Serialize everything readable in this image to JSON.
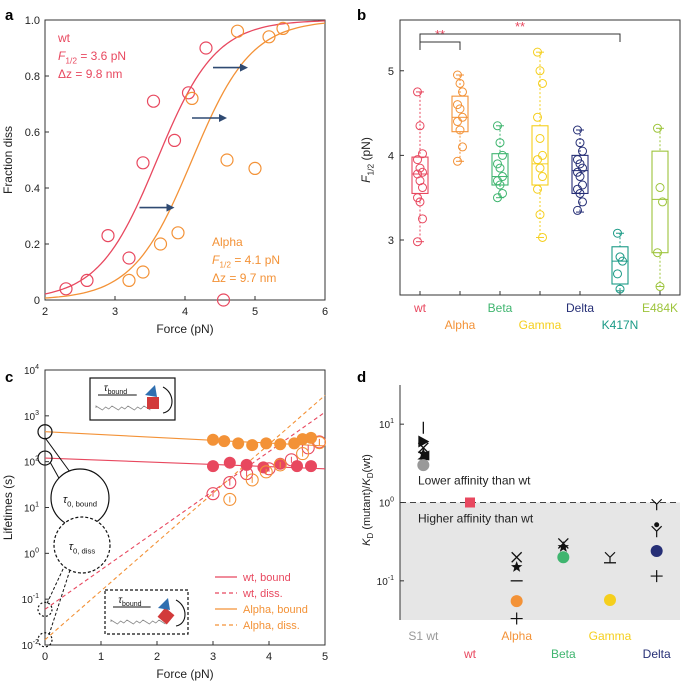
{
  "panels": {
    "a": {
      "letter": "a"
    },
    "b": {
      "letter": "b"
    },
    "c": {
      "letter": "c"
    },
    "d": {
      "letter": "d"
    }
  },
  "colors": {
    "wt": "#e8485f",
    "alpha": "#f39237",
    "beta": "#3fb56f",
    "gamma": "#f5cf1d",
    "delta": "#262f76",
    "k417n": "#1a9a86",
    "e484k": "#9dc43b",
    "s1wt": "#999999",
    "arrow": "#2f4a72",
    "axis": "#333333",
    "shade": "#e6e6e6"
  },
  "chart_data": [
    {
      "id": "a",
      "type": "scatter",
      "xlabel": "Force (pN)",
      "ylabel": "Fraction diss",
      "xlim": [
        2,
        6
      ],
      "ylim": [
        0,
        1.0
      ],
      "xticks": [
        "2",
        "3",
        "4",
        "5",
        "6"
      ],
      "yticks": [
        "0",
        "0.2",
        "0.4",
        "0.6",
        "0.8",
        "1.0"
      ],
      "annotations": {
        "wt_name": "wt",
        "wt_f": "= 3.6 pN",
        "wt_dz": "Δz = 9.8 nm",
        "alpha_name": "Alpha",
        "alpha_f": "= 4.1 pN",
        "alpha_dz": "Δz = 9.7 nm",
        "f_main": "F",
        "f_sub": "1/2"
      },
      "series": [
        {
          "name": "wt",
          "color_key": "wt",
          "f_half": 3.6,
          "dz": 9.8,
          "points": [
            [
              2.3,
              0.04
            ],
            [
              2.6,
              0.07
            ],
            [
              2.9,
              0.23
            ],
            [
              3.2,
              0.15
            ],
            [
              3.4,
              0.49
            ],
            [
              3.55,
              0.71
            ],
            [
              3.85,
              0.57
            ],
            [
              4.05,
              0.74
            ],
            [
              4.3,
              0.9
            ],
            [
              4.55,
              0.0
            ]
          ]
        },
        {
          "name": "Alpha",
          "color_key": "alpha",
          "f_half": 4.1,
          "dz": 9.7,
          "points": [
            [
              3.2,
              0.07
            ],
            [
              3.4,
              0.1
            ],
            [
              3.65,
              0.2
            ],
            [
              3.9,
              0.24
            ],
            [
              4.1,
              0.72
            ],
            [
              4.6,
              0.5
            ],
            [
              4.75,
              0.96
            ],
            [
              5.0,
              0.47
            ],
            [
              5.2,
              0.94
            ],
            [
              5.4,
              0.97
            ]
          ]
        }
      ],
      "arrows": [
        [
          3.35,
          0.33,
          3.85,
          0.33
        ],
        [
          4.1,
          0.65,
          4.6,
          0.65
        ],
        [
          4.4,
          0.83,
          4.9,
          0.83
        ]
      ]
    },
    {
      "id": "b",
      "type": "box",
      "ylabel": "F",
      "ylabel_sub": "1/2",
      "ylabel_unit": " (pN)",
      "ylim": [
        2.35,
        5.6
      ],
      "yticks": [
        "3",
        "4",
        "5"
      ],
      "categories": [
        "wt",
        "Alpha",
        "Beta",
        "Gamma",
        "Delta",
        "K417N",
        "E484K"
      ],
      "color_keys": [
        "wt",
        "alpha",
        "beta",
        "gamma",
        "delta",
        "k417n",
        "e484k"
      ],
      "label_rows": [
        0,
        1,
        0,
        1,
        0,
        1,
        0
      ],
      "significance": [
        {
          "from": 0,
          "to": 1,
          "label": "**"
        },
        {
          "from": 0,
          "to": 5,
          "label": "**"
        }
      ],
      "boxes": [
        {
          "q1": 3.55,
          "median": 3.78,
          "q3": 3.98,
          "wlo": 2.98,
          "whi": 4.75,
          "points": [
            4.75,
            4.35,
            4.02,
            3.95,
            3.85,
            3.8,
            3.78,
            3.7,
            3.62,
            3.5,
            3.45,
            3.25,
            2.98
          ]
        },
        {
          "q1": 4.28,
          "median": 4.45,
          "q3": 4.7,
          "wlo": 3.93,
          "whi": 4.95,
          "points": [
            4.95,
            4.85,
            4.75,
            4.6,
            4.55,
            4.45,
            4.4,
            4.3,
            4.1,
            3.93
          ]
        },
        {
          "q1": 3.65,
          "median": 3.75,
          "q3": 4.02,
          "wlo": 3.5,
          "whi": 4.35,
          "points": [
            4.35,
            4.15,
            4.0,
            3.9,
            3.85,
            3.75,
            3.7,
            3.65,
            3.55,
            3.5
          ]
        },
        {
          "q1": 3.65,
          "median": 3.9,
          "q3": 4.35,
          "wlo": 3.03,
          "whi": 5.22,
          "points": [
            5.22,
            5.0,
            4.85,
            4.45,
            4.2,
            4.0,
            3.95,
            3.85,
            3.75,
            3.6,
            3.3,
            3.03
          ]
        },
        {
          "q1": 3.55,
          "median": 3.82,
          "q3": 4.0,
          "wlo": 3.33,
          "whi": 4.3,
          "points": [
            4.3,
            4.15,
            4.05,
            3.95,
            3.9,
            3.85,
            3.8,
            3.75,
            3.65,
            3.6,
            3.55,
            3.45,
            3.35
          ]
        },
        {
          "q1": 2.48,
          "median": 2.75,
          "q3": 2.92,
          "wlo": 2.4,
          "whi": 3.08,
          "points": [
            3.08,
            2.8,
            2.75,
            2.6,
            2.42
          ]
        },
        {
          "q1": 2.85,
          "median": 3.48,
          "q3": 4.05,
          "wlo": 2.45,
          "whi": 4.32,
          "points": [
            4.32,
            3.62,
            3.45,
            2.85,
            2.45
          ]
        }
      ]
    },
    {
      "id": "c",
      "type": "line",
      "xlabel": "Force (pN)",
      "ylabel": "Lifetimes (s)",
      "xlim": [
        0,
        5
      ],
      "ylog": [
        -2,
        4
      ],
      "xticks": [
        "0",
        "1",
        "2",
        "3",
        "4",
        "5"
      ],
      "yticks": [
        "10",
        "10",
        "10",
        "10",
        "10",
        "10",
        "10"
      ],
      "yexps": [
        "-2",
        "-1",
        "0",
        "1",
        "2",
        "3",
        "4"
      ],
      "tau_bound": {
        "main": "τ",
        "sub": "0, bound"
      },
      "tau_diss": {
        "main": "τ",
        "sub": "0, diss"
      },
      "inset_label": {
        "main": "τ",
        "sub": "bound"
      },
      "legend": [
        {
          "label": "wt, bound",
          "color_key": "wt",
          "dash": false
        },
        {
          "label": "wt, diss.",
          "color_key": "wt",
          "dash": true
        },
        {
          "label": "Alpha, bound",
          "color_key": "alpha",
          "dash": false
        },
        {
          "label": "Alpha, diss.",
          "color_key": "alpha",
          "dash": true
        }
      ],
      "lines": [
        {
          "color_key": "wt",
          "dash": false,
          "y0": 120,
          "y1": 70
        },
        {
          "color_key": "wt",
          "dash": true,
          "y0": 0.06,
          "y1": 1200
        },
        {
          "color_key": "alpha",
          "dash": false,
          "y0": 450,
          "y1": 220
        },
        {
          "color_key": "alpha",
          "dash": true,
          "y0": 0.013,
          "y1": 2800
        }
      ],
      "filled": {
        "wt": [
          [
            3.0,
            80
          ],
          [
            3.3,
            95
          ],
          [
            3.6,
            85
          ],
          [
            3.9,
            75
          ],
          [
            4.2,
            90
          ],
          [
            4.5,
            80
          ],
          [
            4.75,
            80
          ]
        ],
        "alpha": [
          [
            3.0,
            300
          ],
          [
            3.2,
            280
          ],
          [
            3.45,
            250
          ],
          [
            3.7,
            230
          ],
          [
            3.95,
            250
          ],
          [
            4.2,
            240
          ],
          [
            4.45,
            250
          ],
          [
            4.6,
            310
          ],
          [
            4.75,
            330
          ]
        ]
      },
      "open": {
        "wt": [
          [
            3.0,
            20
          ],
          [
            3.3,
            35
          ],
          [
            3.6,
            55
          ],
          [
            4.0,
            70
          ],
          [
            4.4,
            110
          ],
          [
            4.7,
            200
          ],
          [
            4.9,
            270
          ]
        ],
        "alpha": [
          [
            3.3,
            15
          ],
          [
            3.7,
            40
          ],
          [
            3.95,
            60
          ],
          [
            4.2,
            85
          ],
          [
            4.6,
            150
          ],
          [
            4.9,
            260
          ]
        ]
      },
      "origin_points": [
        450,
        120,
        0.06,
        0.013
      ]
    },
    {
      "id": "d",
      "type": "scatter",
      "ylabel_main": "K",
      "ylabel_sub": "D",
      "ylabel_rest": " (mutant)/",
      "ylabel_sub2": "D",
      "ylabel_end": "(wt)",
      "ylog": [
        -1.5,
        1.5
      ],
      "yticks": [
        "10",
        "10",
        "10"
      ],
      "yexps": [
        "-1",
        "0",
        "1"
      ],
      "lower_text": "Lower affinity than wt",
      "higher_text": "Higher affinity than wt",
      "categories": [
        "S1 wt",
        "wt",
        "Alpha",
        "Beta",
        "Gamma",
        "Delta"
      ],
      "color_keys": [
        "s1wt",
        "wt",
        "alpha",
        "beta",
        "gamma",
        "delta"
      ],
      "label_rows": [
        0,
        1,
        0,
        1,
        0,
        1
      ],
      "points": [
        {
          "cat": 0,
          "sym": "|",
          "v": 9.0
        },
        {
          "cat": 0,
          "sym": "tri",
          "v": 6.0
        },
        {
          "cat": 0,
          "sym": "x",
          "v": 5.0
        },
        {
          "cat": 0,
          "sym": "star",
          "v": 4.2
        },
        {
          "cat": 0,
          "sym": "wedge",
          "v": 4.0
        },
        {
          "cat": 0,
          "sym": "circle",
          "v": 3.0
        },
        {
          "cat": 1,
          "sym": "square",
          "v": 1.0
        },
        {
          "cat": 2,
          "sym": "x",
          "v": 0.2
        },
        {
          "cat": 2,
          "sym": "star",
          "v": 0.15
        },
        {
          "cat": 2,
          "sym": "dash",
          "v": 0.1
        },
        {
          "cat": 2,
          "sym": "circle",
          "v": 0.055
        },
        {
          "cat": 2,
          "sym": "plus",
          "v": 0.033
        },
        {
          "cat": 3,
          "sym": "x",
          "v": 0.3
        },
        {
          "cat": 3,
          "sym": "star",
          "v": 0.27
        },
        {
          "cat": 3,
          "sym": "circle",
          "v": 0.2
        },
        {
          "cat": 4,
          "sym": "y",
          "v": 0.2
        },
        {
          "cat": 4,
          "sym": "dash",
          "v": 0.17
        },
        {
          "cat": 4,
          "sym": "circle",
          "v": 0.057
        },
        {
          "cat": 5,
          "sym": "y",
          "v": 0.95
        },
        {
          "cat": 5,
          "sym": "dot",
          "v": 0.52
        },
        {
          "cat": 5,
          "sym": "y",
          "v": 0.43
        },
        {
          "cat": 5,
          "sym": "circle",
          "v": 0.24
        },
        {
          "cat": 5,
          "sym": "plus",
          "v": 0.115
        }
      ]
    }
  ]
}
